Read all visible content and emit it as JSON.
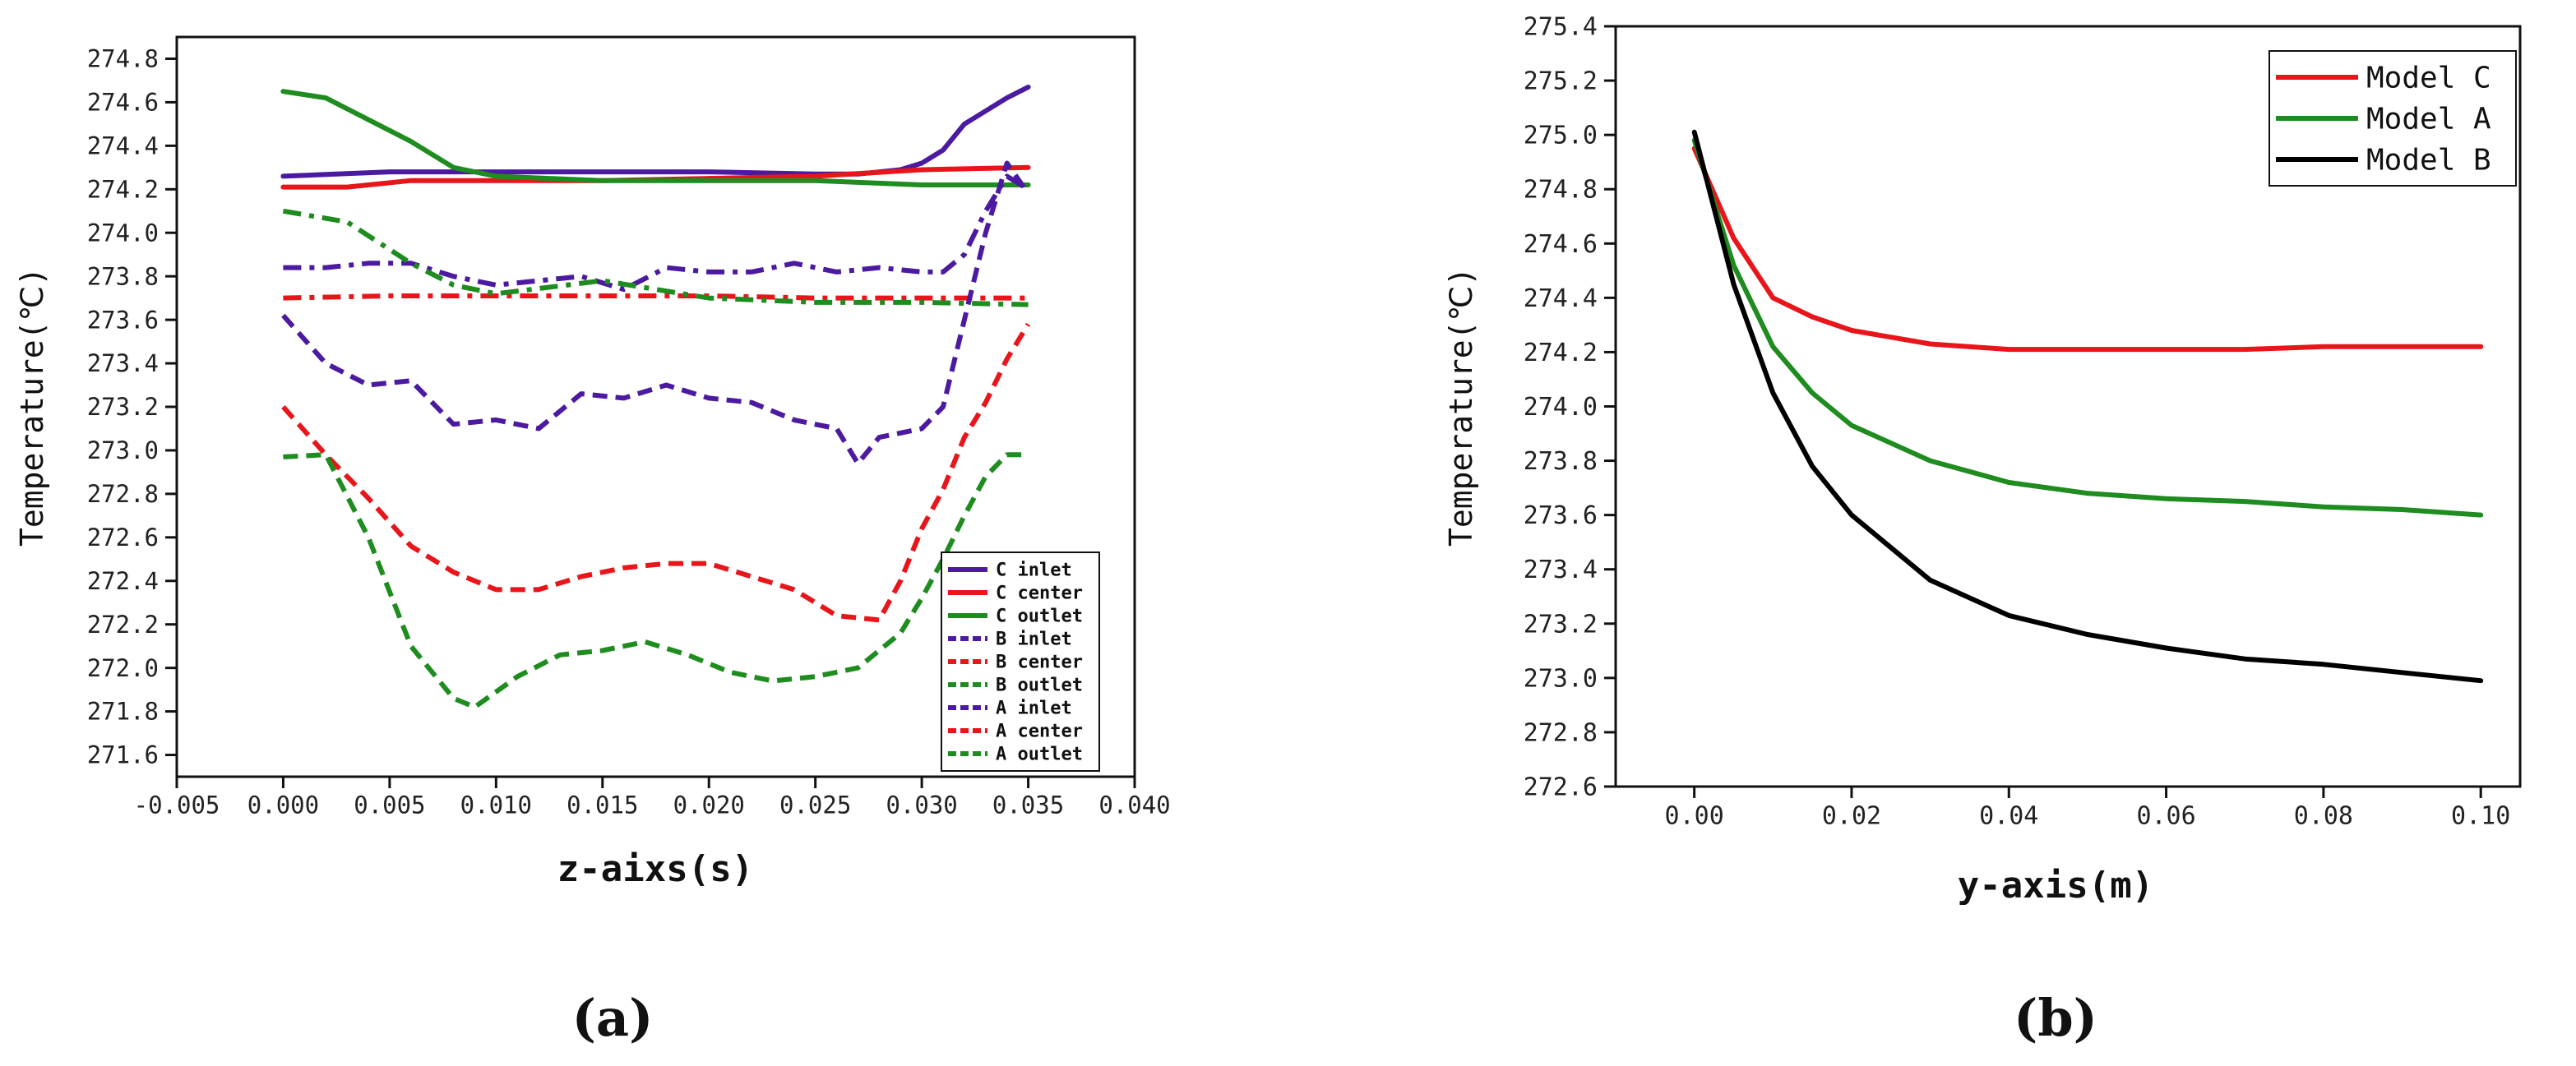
{
  "chart_data": [
    {
      "type": "line",
      "panel_label": "(a)",
      "xlabel": "z-aixs(s)",
      "ylabel": "Temperature(℃)",
      "xlim": [
        -0.005,
        0.04
      ],
      "ylim": [
        271.5,
        274.9
      ],
      "x_ticks": [
        "-0.005",
        "0.000",
        "0.005",
        "0.010",
        "0.015",
        "0.020",
        "0.025",
        "0.030",
        "0.035",
        "0.040"
      ],
      "y_ticks": [
        "274.8",
        "274.6",
        "274.4",
        "274.2",
        "274.0",
        "273.8",
        "273.6",
        "273.4",
        "273.2",
        "273.0",
        "272.8",
        "272.6",
        "272.4",
        "272.2",
        "272.0",
        "271.8",
        "271.6"
      ],
      "legend_position": "bottom-right",
      "series": [
        {
          "name": "C inlet",
          "color": "#4b1aa0",
          "dash": "solid",
          "x": [
            0.0,
            0.005,
            0.01,
            0.015,
            0.02,
            0.025,
            0.027,
            0.029,
            0.03,
            0.031,
            0.032,
            0.033,
            0.034,
            0.035
          ],
          "y": [
            274.26,
            274.28,
            274.28,
            274.28,
            274.28,
            274.27,
            274.27,
            274.29,
            274.32,
            274.38,
            274.5,
            274.56,
            274.62,
            274.67
          ]
        },
        {
          "name": "C center",
          "color": "#e8151b",
          "dash": "solid",
          "x": [
            0.0,
            0.003,
            0.006,
            0.01,
            0.015,
            0.02,
            0.025,
            0.03,
            0.035
          ],
          "y": [
            274.21,
            274.21,
            274.24,
            274.24,
            274.24,
            274.25,
            274.26,
            274.29,
            274.3
          ]
        },
        {
          "name": "C outlet",
          "color": "#1e8c1e",
          "dash": "solid",
          "x": [
            0.0,
            0.002,
            0.004,
            0.006,
            0.008,
            0.01,
            0.015,
            0.02,
            0.025,
            0.03,
            0.035
          ],
          "y": [
            274.65,
            274.62,
            274.52,
            274.42,
            274.3,
            274.26,
            274.24,
            274.24,
            274.24,
            274.22,
            274.22
          ]
        },
        {
          "name": "B inlet",
          "color": "#4b1aa0",
          "dash": "dashdot",
          "x": [
            0.0,
            0.002,
            0.004,
            0.006,
            0.008,
            0.01,
            0.012,
            0.014,
            0.016,
            0.018,
            0.02,
            0.022,
            0.024,
            0.026,
            0.028,
            0.03,
            0.031,
            0.032,
            0.033,
            0.034,
            0.035
          ],
          "y": [
            273.84,
            273.84,
            273.86,
            273.86,
            273.8,
            273.76,
            273.78,
            273.8,
            273.74,
            273.84,
            273.82,
            273.82,
            273.86,
            273.82,
            273.84,
            273.82,
            273.82,
            273.9,
            274.1,
            274.26,
            274.2
          ]
        },
        {
          "name": "B center",
          "color": "#e8151b",
          "dash": "dashdot",
          "x": [
            0.0,
            0.005,
            0.01,
            0.015,
            0.02,
            0.025,
            0.03,
            0.035
          ],
          "y": [
            273.7,
            273.71,
            273.71,
            273.71,
            273.71,
            273.7,
            273.7,
            273.7
          ]
        },
        {
          "name": "B outlet",
          "color": "#1e8c1e",
          "dash": "dashdot",
          "x": [
            0.0,
            0.003,
            0.006,
            0.008,
            0.01,
            0.015,
            0.02,
            0.025,
            0.03,
            0.035
          ],
          "y": [
            274.1,
            274.05,
            273.86,
            273.76,
            273.72,
            273.78,
            273.7,
            273.68,
            273.68,
            273.67
          ]
        },
        {
          "name": "A inlet",
          "color": "#4b1aa0",
          "dash": "dashed",
          "x": [
            0.0,
            0.002,
            0.004,
            0.006,
            0.008,
            0.01,
            0.012,
            0.014,
            0.016,
            0.018,
            0.02,
            0.022,
            0.024,
            0.026,
            0.027,
            0.028,
            0.03,
            0.031,
            0.032,
            0.033,
            0.034,
            0.035
          ],
          "y": [
            273.62,
            273.4,
            273.3,
            273.32,
            273.12,
            273.14,
            273.1,
            273.26,
            273.24,
            273.3,
            273.24,
            273.22,
            273.14,
            273.1,
            272.94,
            273.06,
            273.1,
            273.2,
            273.6,
            274.0,
            274.32,
            274.18
          ]
        },
        {
          "name": "A center",
          "color": "#e8151b",
          "dash": "dashed",
          "x": [
            0.0,
            0.002,
            0.004,
            0.006,
            0.008,
            0.01,
            0.012,
            0.014,
            0.016,
            0.018,
            0.02,
            0.022,
            0.024,
            0.026,
            0.028,
            0.029,
            0.03,
            0.031,
            0.032,
            0.033,
            0.034,
            0.035
          ],
          "y": [
            273.2,
            272.98,
            272.78,
            272.56,
            272.44,
            272.36,
            272.36,
            272.42,
            272.46,
            272.48,
            272.48,
            272.42,
            272.36,
            272.24,
            272.22,
            272.4,
            272.64,
            272.82,
            273.06,
            273.22,
            273.42,
            273.58
          ]
        },
        {
          "name": "A outlet",
          "color": "#1e8c1e",
          "dash": "dashed",
          "x": [
            0.0,
            0.002,
            0.004,
            0.006,
            0.008,
            0.009,
            0.011,
            0.013,
            0.015,
            0.017,
            0.019,
            0.021,
            0.023,
            0.025,
            0.027,
            0.029,
            0.03,
            0.031,
            0.032,
            0.033,
            0.034,
            0.035
          ],
          "y": [
            272.97,
            272.98,
            272.6,
            272.1,
            271.86,
            271.82,
            271.96,
            272.06,
            272.08,
            272.12,
            272.06,
            271.98,
            271.94,
            271.96,
            272.0,
            272.16,
            272.32,
            272.5,
            272.7,
            272.88,
            272.98,
            272.98
          ]
        }
      ]
    },
    {
      "type": "line",
      "panel_label": "(b)",
      "xlabel": "y-axis(m)",
      "ylabel": "Temperature(℃)",
      "xlim": [
        -0.01,
        0.105
      ],
      "ylim": [
        272.6,
        275.4
      ],
      "x_ticks": [
        "0.00",
        "0.02",
        "0.04",
        "0.06",
        "0.08",
        "0.10"
      ],
      "y_ticks": [
        "275.4",
        "275.2",
        "275.0",
        "274.8",
        "274.6",
        "274.4",
        "274.2",
        "274.0",
        "273.8",
        "273.6",
        "273.4",
        "273.2",
        "273.0",
        "272.8",
        "272.6"
      ],
      "legend_position": "top-right",
      "series": [
        {
          "name": "Model C",
          "color": "#e8151b",
          "dash": "solid",
          "x": [
            0.0,
            0.005,
            0.01,
            0.015,
            0.02,
            0.03,
            0.04,
            0.05,
            0.06,
            0.07,
            0.08,
            0.09,
            0.1
          ],
          "y": [
            274.95,
            274.62,
            274.4,
            274.33,
            274.28,
            274.23,
            274.21,
            274.21,
            274.21,
            274.21,
            274.22,
            274.22,
            274.22
          ]
        },
        {
          "name": "Model A",
          "color": "#1e8c1e",
          "dash": "solid",
          "x": [
            0.0,
            0.005,
            0.01,
            0.015,
            0.02,
            0.03,
            0.04,
            0.05,
            0.06,
            0.07,
            0.08,
            0.09,
            0.1
          ],
          "y": [
            274.98,
            274.52,
            274.22,
            274.05,
            273.93,
            273.8,
            273.72,
            273.68,
            273.66,
            273.65,
            273.63,
            273.62,
            273.6
          ]
        },
        {
          "name": "Model B",
          "color": "#000000",
          "dash": "solid",
          "x": [
            0.0,
            0.005,
            0.01,
            0.015,
            0.02,
            0.03,
            0.04,
            0.05,
            0.06,
            0.07,
            0.08,
            0.09,
            0.1
          ],
          "y": [
            275.01,
            274.45,
            274.05,
            273.78,
            273.6,
            273.36,
            273.23,
            273.16,
            273.11,
            273.07,
            273.05,
            273.02,
            272.99
          ]
        }
      ]
    }
  ]
}
